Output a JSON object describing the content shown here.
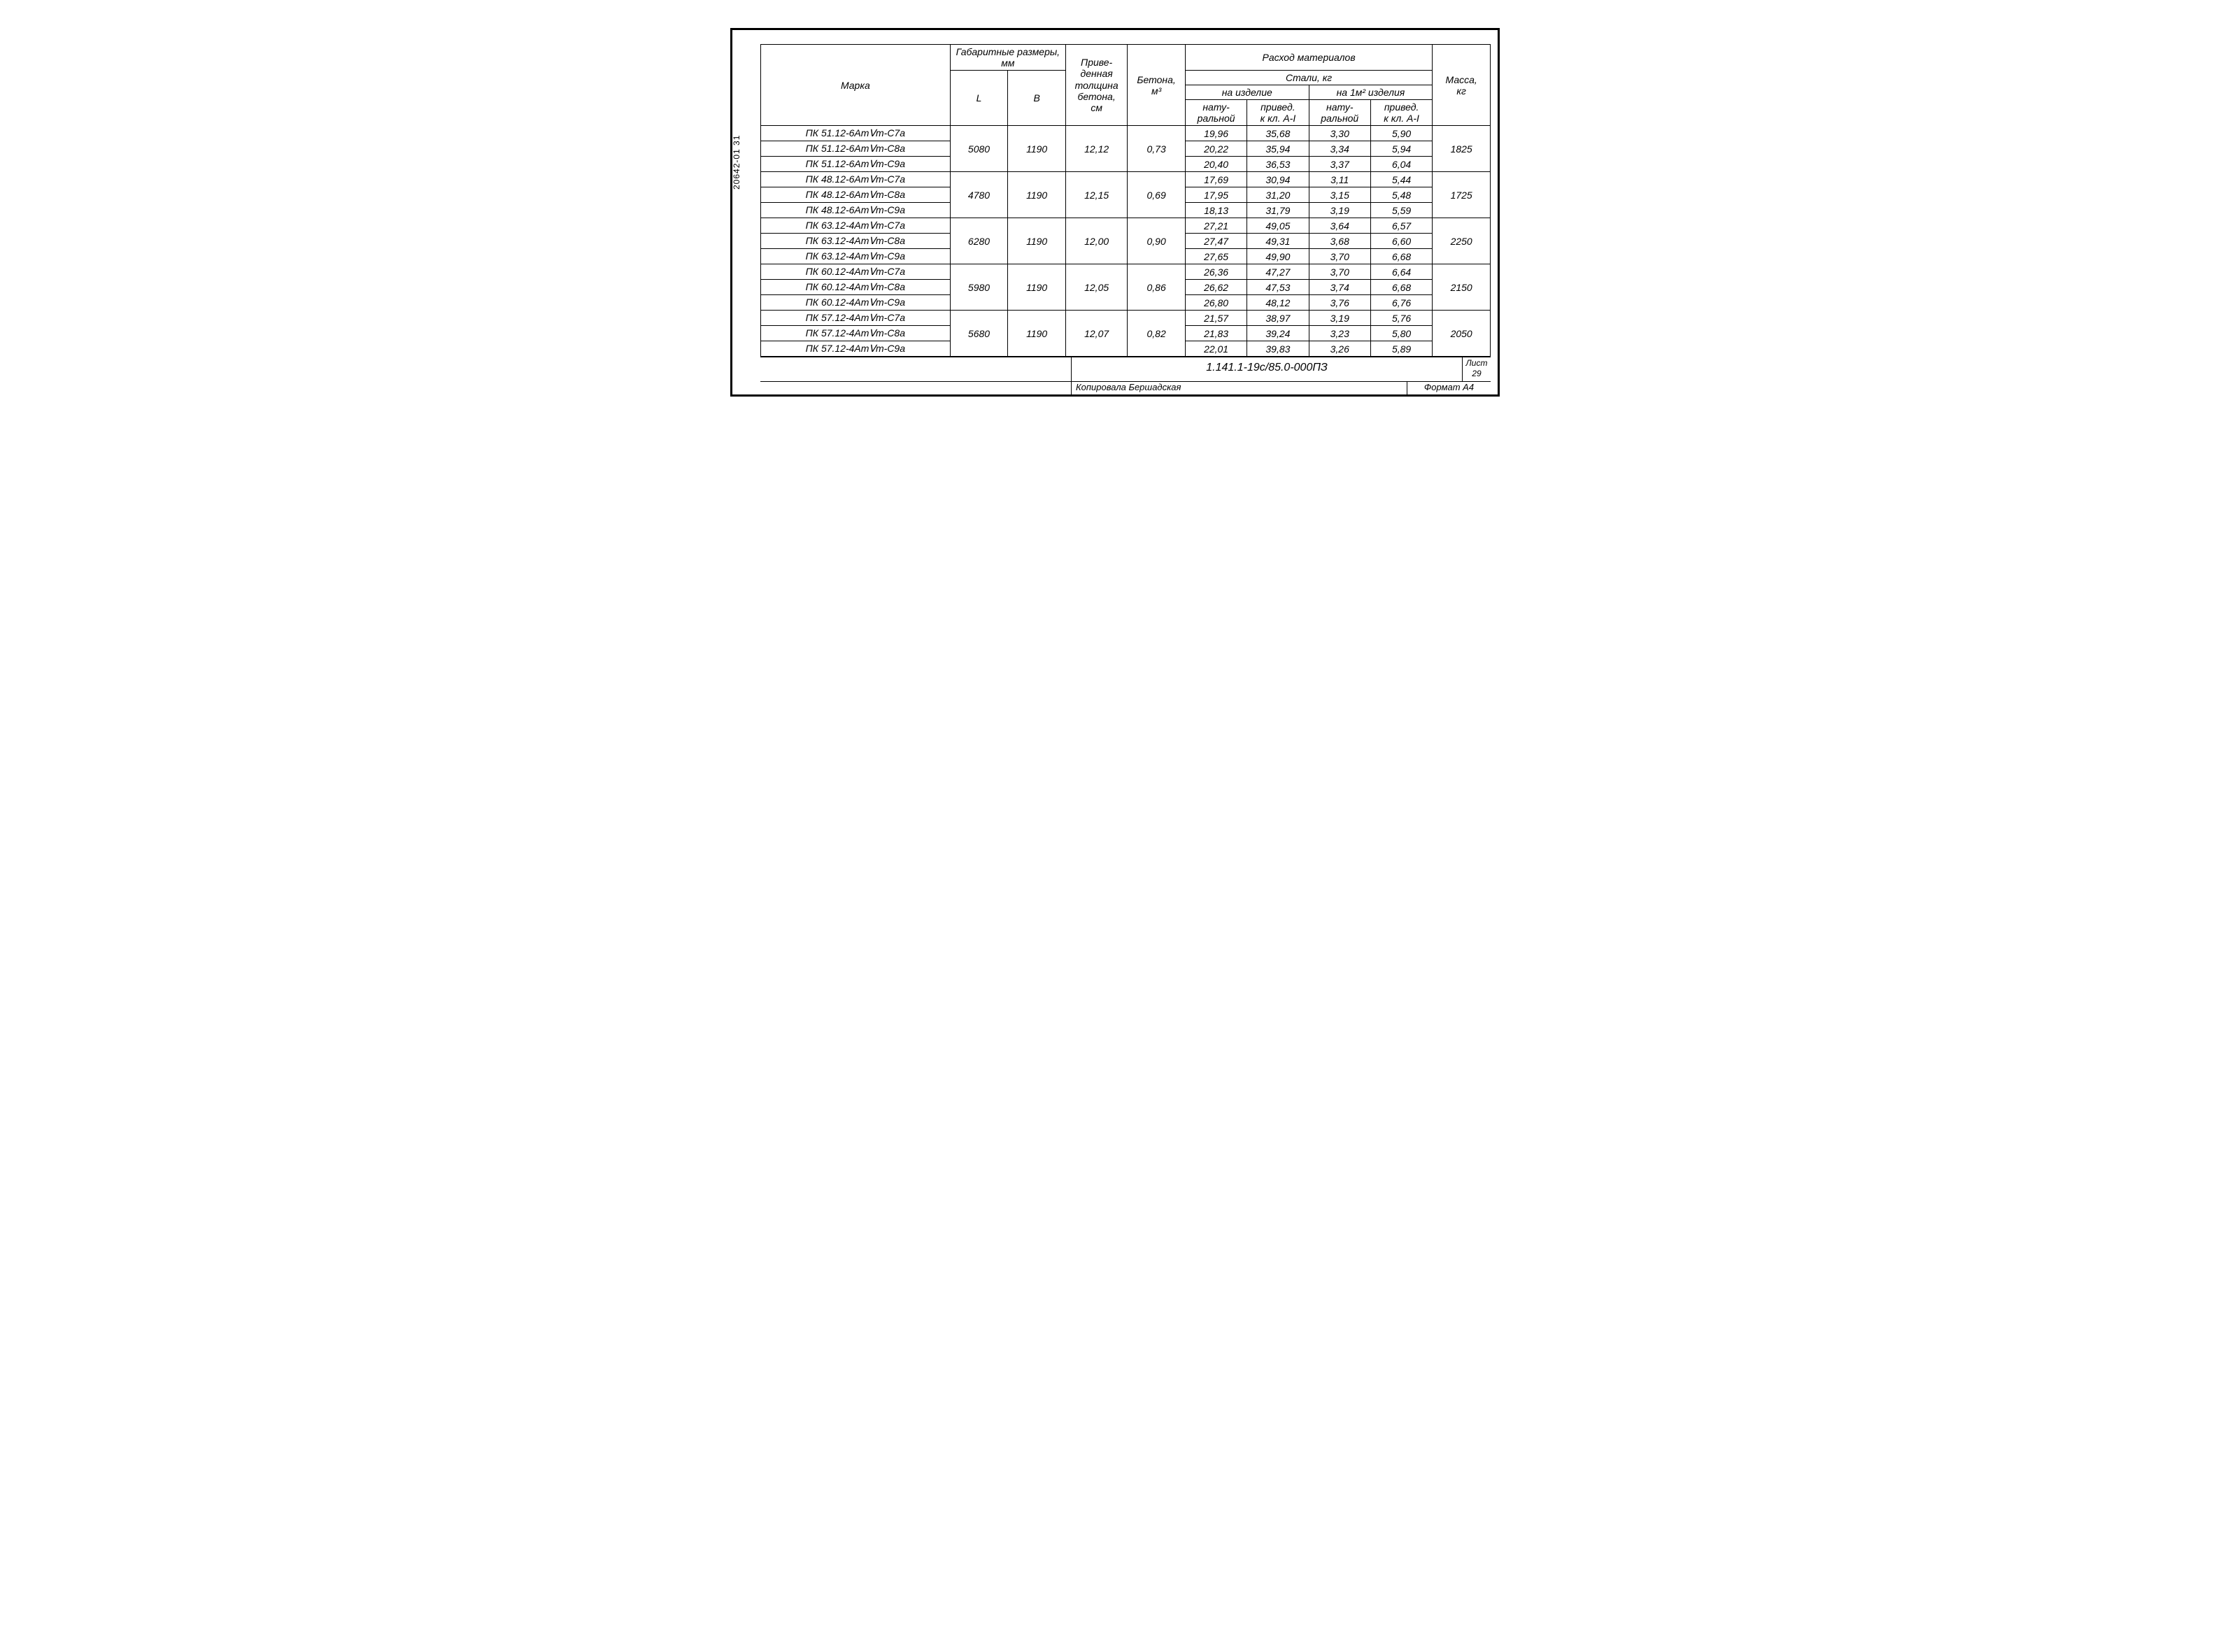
{
  "side_label": "20642-01   31",
  "headers": {
    "marka": "Марка",
    "gabarit": "Габаритные размеры, мм",
    "l": "L",
    "b": "В",
    "thickness": "Приве-\nденная\nтолщина\nбетона,\nсм",
    "beton": "Бетона,\nм³",
    "rashod": "Расход материалов",
    "stali": "Стали, кг",
    "na_izd": "на изделие",
    "na_m2": "на 1м² изделия",
    "natur": "нату-\nральной",
    "prived": "привед.\nк кл. А-I",
    "massa": "Масса,\nкг"
  },
  "groups": [
    {
      "l": "5080",
      "b": "1190",
      "thick": "12,12",
      "beton": "0,73",
      "mass": "1825",
      "rows": [
        {
          "marka": "ПК 51.12-6АтⅤт-С7а",
          "s1": "19,96",
          "s2": "35,68",
          "s3": "3,30",
          "s4": "5,90"
        },
        {
          "marka": "ПК 51.12-6АтⅤт-С8а",
          "s1": "20,22",
          "s2": "35,94",
          "s3": "3,34",
          "s4": "5,94"
        },
        {
          "marka": "ПК 51.12-6АтⅤт-С9а",
          "s1": "20,40",
          "s2": "36,53",
          "s3": "3,37",
          "s4": "6,04"
        }
      ]
    },
    {
      "l": "4780",
      "b": "1190",
      "thick": "12,15",
      "beton": "0,69",
      "mass": "1725",
      "rows": [
        {
          "marka": "ПК 48.12-6АтⅤт-С7а",
          "s1": "17,69",
          "s2": "30,94",
          "s3": "3,11",
          "s4": "5,44"
        },
        {
          "marka": "ПК 48.12-6АтⅤт-С8а",
          "s1": "17,95",
          "s2": "31,20",
          "s3": "3,15",
          "s4": "5,48"
        },
        {
          "marka": "ПК 48.12-6АтⅤт-С9а",
          "s1": "18,13",
          "s2": "31,79",
          "s3": "3,19",
          "s4": "5,59"
        }
      ]
    },
    {
      "l": "6280",
      "b": "1190",
      "thick": "12,00",
      "beton": "0,90",
      "mass": "2250",
      "rows": [
        {
          "marka": "ПК 63.12-4АтⅤт-С7а",
          "s1": "27,21",
          "s2": "49,05",
          "s3": "3,64",
          "s4": "6,57"
        },
        {
          "marka": "ПК 63.12-4АтⅤт-С8а",
          "s1": "27,47",
          "s2": "49,31",
          "s3": "3,68",
          "s4": "6,60"
        },
        {
          "marka": "ПК 63.12-4АтⅤт-С9а",
          "s1": "27,65",
          "s2": "49,90",
          "s3": "3,70",
          "s4": "6,68"
        }
      ]
    },
    {
      "l": "5980",
      "b": "1190",
      "thick": "12,05",
      "beton": "0,86",
      "mass": "2150",
      "rows": [
        {
          "marka": "ПК 60.12-4АтⅤт-С7а",
          "s1": "26,36",
          "s2": "47,27",
          "s3": "3,70",
          "s4": "6,64"
        },
        {
          "marka": "ПК 60.12-4АтⅤт-С8а",
          "s1": "26,62",
          "s2": "47,53",
          "s3": "3,74",
          "s4": "6,68"
        },
        {
          "marka": "ПК 60.12-4АтⅤт-С9а",
          "s1": "26,80",
          "s2": "48,12",
          "s3": "3,76",
          "s4": "6,76"
        }
      ]
    },
    {
      "l": "5680",
      "b": "1190",
      "thick": "12,07",
      "beton": "0,82",
      "mass": "2050",
      "rows": [
        {
          "marka": "ПК 57.12-4АтⅤт-С7а",
          "s1": "21,57",
          "s2": "38,97",
          "s3": "3,19",
          "s4": "5,76"
        },
        {
          "marka": "ПК 57.12-4АтⅤт-С8а",
          "s1": "21,83",
          "s2": "39,24",
          "s3": "3,23",
          "s4": "5,80"
        },
        {
          "marka": "ПК 57.12-4АтⅤт-С9а",
          "s1": "22,01",
          "s2": "39,83",
          "s3": "3,26",
          "s4": "5,89"
        }
      ]
    }
  ],
  "footer": {
    "doc_number": "1.141.1-19с/85.0-000ПЗ",
    "sheet_label": "Лист",
    "sheet_num": "29",
    "copied_by": "Копировала Бершадская",
    "format": "Формат А4"
  }
}
